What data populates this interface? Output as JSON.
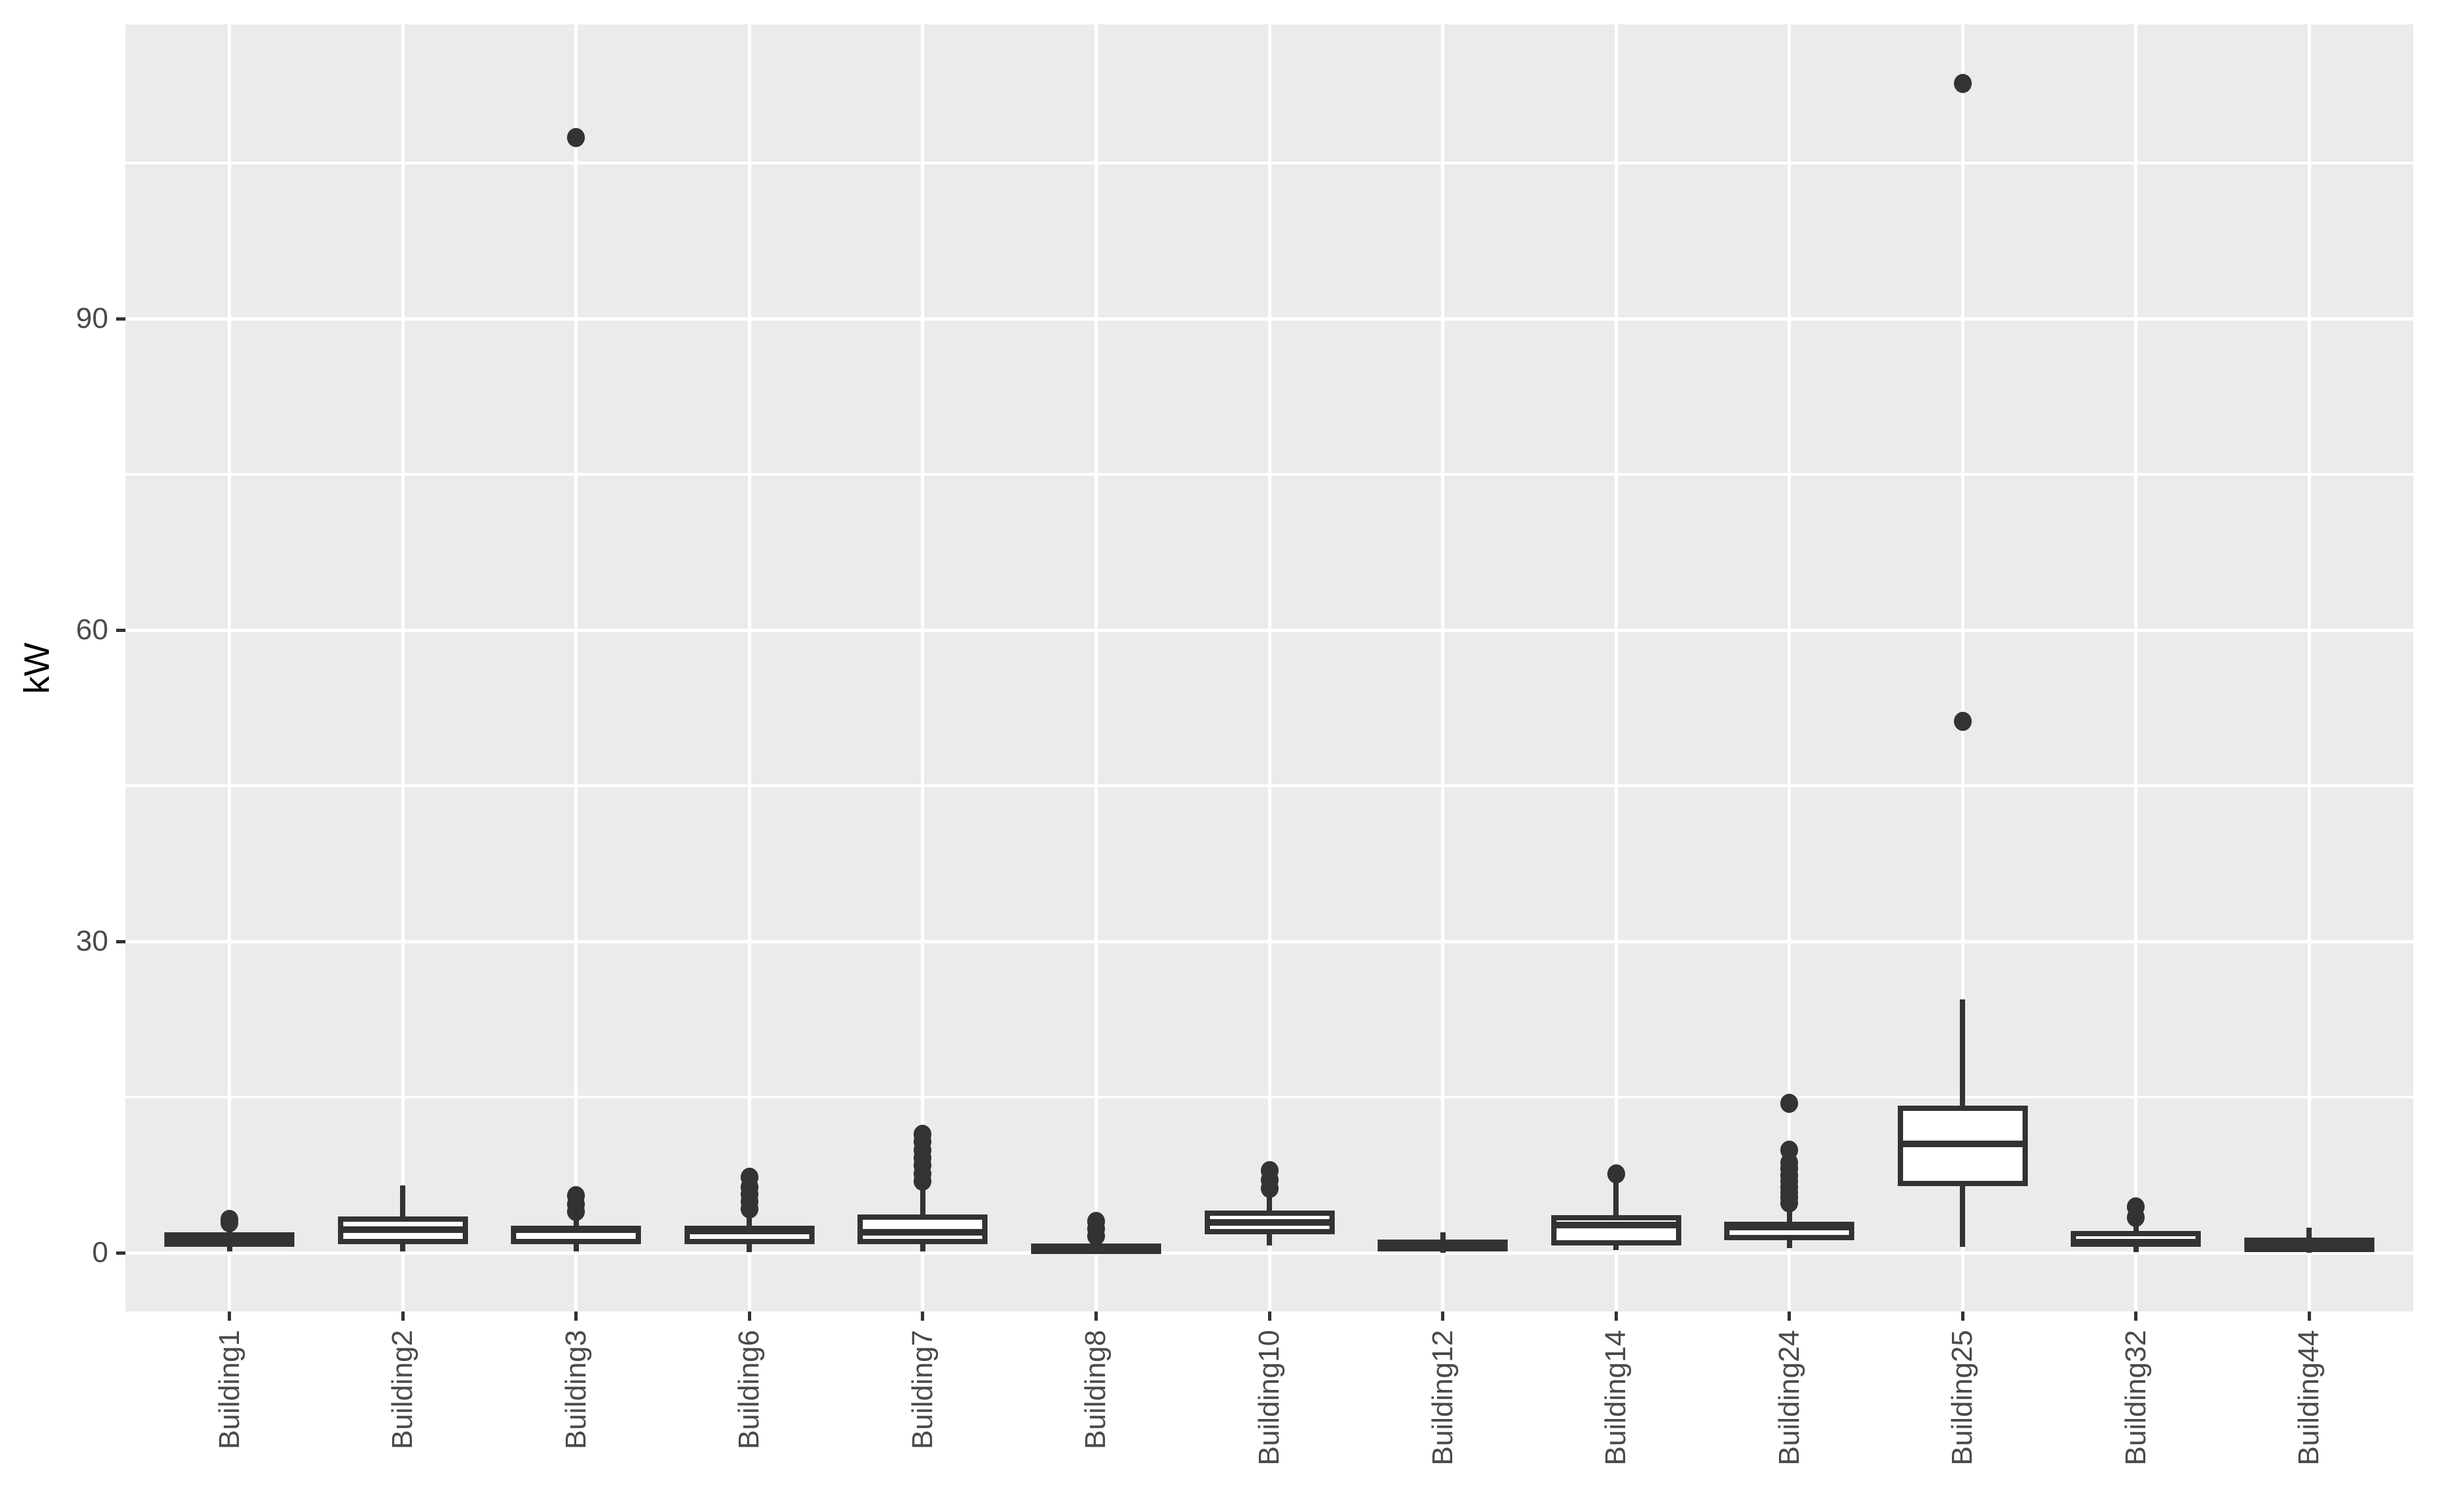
{
  "figure": {
    "y_axis_title": "kW"
  },
  "colors": {
    "panel_bg": "#EBEBEB",
    "grid": "#FFFFFF",
    "box_stroke": "#333333",
    "box_fill": "#FFFFFF",
    "tick_mark": "#333333",
    "tick_label": "#4A4A4A",
    "axis_title": "#000000"
  },
  "chart_data": {
    "type": "boxplot",
    "title": "",
    "xlabel": "",
    "ylabel": "kW",
    "ylim": [
      -5.7,
      118.4
    ],
    "y_major_ticks": [
      0,
      30,
      60,
      90
    ],
    "y_tick_labels": [
      "0",
      "30",
      "60",
      "90"
    ],
    "y_minor_gridlines": [
      15,
      45,
      75,
      105
    ],
    "grid": "major+minor horizontal white, vertical white at category centers",
    "legend_position": "none",
    "categories": [
      "Building1",
      "Building2",
      "Building3",
      "Building6",
      "Building7",
      "Building8",
      "Building10",
      "Building12",
      "Building14",
      "Building24",
      "Building25",
      "Building32",
      "Building44"
    ],
    "series": [
      {
        "name": "Building1",
        "whisker_low": 0.1,
        "q1": 0.6,
        "median": 1.2,
        "q3": 2.0,
        "whisker_high": 2.3,
        "outliers": [
          2.9,
          3.2
        ]
      },
      {
        "name": "Building2",
        "whisker_low": 0.1,
        "q1": 0.8,
        "median": 2.2,
        "q3": 3.5,
        "whisker_high": 6.5,
        "outliers": []
      },
      {
        "name": "Building3",
        "whisker_low": 0.1,
        "q1": 0.8,
        "median": 2.2,
        "q3": 2.6,
        "whisker_high": 3.3,
        "outliers": [
          4.0,
          4.7,
          5.5,
          107.5
        ]
      },
      {
        "name": "Building6",
        "whisker_low": 0.05,
        "q1": 0.8,
        "median": 2.1,
        "q3": 2.6,
        "whisker_high": 3.5,
        "outliers": [
          4.2,
          4.9,
          5.6,
          6.3,
          7.3
        ]
      },
      {
        "name": "Building7",
        "whisker_low": 0.1,
        "q1": 0.8,
        "median": 2.0,
        "q3": 3.7,
        "whisker_high": 6.3,
        "outliers": [
          6.9,
          7.6,
          8.4,
          9.1,
          9.9,
          10.7,
          11.4
        ]
      },
      {
        "name": "Building8",
        "whisker_low": 0.0,
        "q1": 0.05,
        "median": 0.45,
        "q3": 0.9,
        "whisker_high": 1.0,
        "outliers": [
          1.6,
          2.3,
          3.0
        ]
      },
      {
        "name": "Building10",
        "whisker_low": 0.7,
        "q1": 1.8,
        "median": 2.9,
        "q3": 4.1,
        "whisker_high": 5.7,
        "outliers": [
          6.2,
          7.0,
          7.9
        ]
      },
      {
        "name": "Building12",
        "whisker_low": 0.0,
        "q1": 0.1,
        "median": 0.6,
        "q3": 1.3,
        "whisker_high": 2.0,
        "outliers": []
      },
      {
        "name": "Building14",
        "whisker_low": 0.25,
        "q1": 0.7,
        "median": 2.7,
        "q3": 3.6,
        "whisker_high": 7.0,
        "outliers": [
          7.6
        ]
      },
      {
        "name": "Building24",
        "whisker_low": 0.45,
        "q1": 1.2,
        "median": 2.5,
        "q3": 3.0,
        "whisker_high": 4.4,
        "outliers": [
          4.8,
          5.3,
          5.8,
          6.3,
          6.9,
          7.5,
          8.1,
          8.7,
          9.9,
          14.4
        ]
      },
      {
        "name": "Building25",
        "whisker_low": 0.6,
        "q1": 6.4,
        "median": 10.5,
        "q3": 14.2,
        "whisker_high": 24.4,
        "outliers": [
          51.2,
          112.7
        ]
      },
      {
        "name": "Building32",
        "whisker_low": 0.05,
        "q1": 0.55,
        "median": 1.0,
        "q3": 2.1,
        "whisker_high": 2.85,
        "outliers": [
          3.4,
          4.4
        ]
      },
      {
        "name": "Building44",
        "whisker_low": 0.0,
        "q1": 0.06,
        "median": 0.8,
        "q3": 1.45,
        "whisker_high": 2.4,
        "outliers": []
      }
    ]
  }
}
